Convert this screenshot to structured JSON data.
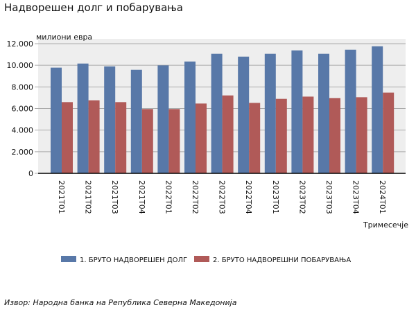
{
  "chart_data": {
    "type": "bar",
    "title": "Надворешен долг и побарувања",
    "ylabel": "милиони евра",
    "xlabel": "Тримесечје",
    "ylim": [
      0,
      12000
    ],
    "yticks": [
      0,
      2000,
      4000,
      6000,
      8000,
      10000,
      12000
    ],
    "ytick_labels": [
      "0",
      "2.000",
      "4.000",
      "6.000",
      "8.000",
      "10.000",
      "12.000"
    ],
    "grid": true,
    "legend_position": "bottom",
    "categories": [
      "2021Т01",
      "2021Т02",
      "2021Т03",
      "2021Т04",
      "2022Т01",
      "2022Т02",
      "2022Т03",
      "2022Т04",
      "2023Т01",
      "2023Т02",
      "2023Т03",
      "2023Т04",
      "2024Т01"
    ],
    "series": [
      {
        "name": "1. БРУТО НАДВОРЕШЕН ДОЛГ",
        "color": "#5878a8",
        "values": [
          9780,
          10160,
          9900,
          9580,
          9990,
          10350,
          11060,
          10800,
          11060,
          11380,
          11060,
          11440,
          11760
        ]
      },
      {
        "name": "2. БРУТО НАДВОРЕШНИ ПОБАРУВАЊА",
        "color": "#b05a58",
        "values": [
          6590,
          6760,
          6590,
          5950,
          5950,
          6460,
          7210,
          6520,
          6890,
          7100,
          6970,
          7040,
          7470
        ]
      }
    ]
  },
  "source": "Извор: Народна банка на Република Северна Македонија"
}
